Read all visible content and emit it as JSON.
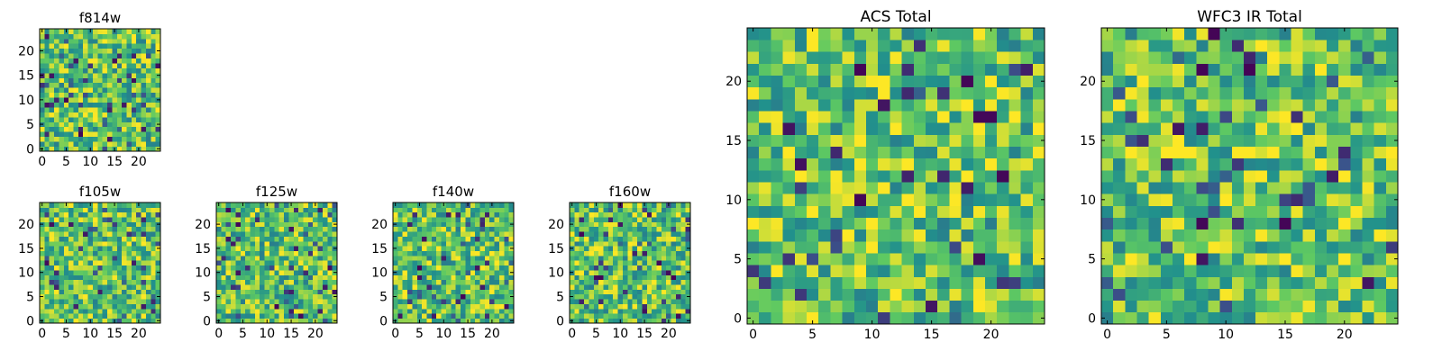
{
  "figure": {
    "description_label": "Image cutout panels"
  },
  "chart_data": [
    {
      "type": "heatmap",
      "title": "f814w",
      "grid_size": 25,
      "xlim": [
        0,
        24
      ],
      "ylim": [
        0,
        24
      ],
      "xticks": [
        0,
        5,
        10,
        15,
        20
      ],
      "yticks": [
        0,
        5,
        10,
        15,
        20
      ],
      "seed": 814,
      "colormap": "viridis"
    },
    {
      "type": "heatmap",
      "title": "f105w",
      "grid_size": 25,
      "xlim": [
        0,
        24
      ],
      "ylim": [
        0,
        24
      ],
      "xticks": [
        0,
        5,
        10,
        15,
        20
      ],
      "yticks": [
        0,
        5,
        10,
        15,
        20
      ],
      "seed": 105,
      "colormap": "viridis"
    },
    {
      "type": "heatmap",
      "title": "f125w",
      "grid_size": 25,
      "xlim": [
        0,
        24
      ],
      "ylim": [
        0,
        24
      ],
      "xticks": [
        0,
        5,
        10,
        15,
        20
      ],
      "yticks": [
        0,
        5,
        10,
        15,
        20
      ],
      "seed": 125,
      "colormap": "viridis"
    },
    {
      "type": "heatmap",
      "title": "f140w",
      "grid_size": 25,
      "xlim": [
        0,
        24
      ],
      "ylim": [
        0,
        24
      ],
      "xticks": [
        0,
        5,
        10,
        15,
        20
      ],
      "yticks": [
        0,
        5,
        10,
        15,
        20
      ],
      "seed": 140,
      "colormap": "viridis"
    },
    {
      "type": "heatmap",
      "title": "f160w",
      "grid_size": 25,
      "xlim": [
        0,
        24
      ],
      "ylim": [
        0,
        24
      ],
      "xticks": [
        0,
        5,
        10,
        15,
        20
      ],
      "yticks": [
        0,
        5,
        10,
        15,
        20
      ],
      "seed": 160,
      "colormap": "viridis"
    },
    {
      "type": "heatmap",
      "title": "ACS Total",
      "grid_size": 25,
      "xlim": [
        0,
        24
      ],
      "ylim": [
        0,
        24
      ],
      "xticks": [
        0,
        5,
        10,
        15,
        20
      ],
      "yticks": [
        0,
        5,
        10,
        15,
        20
      ],
      "seed": 1001,
      "colormap": "viridis"
    },
    {
      "type": "heatmap",
      "title": "WFC3 IR Total",
      "grid_size": 25,
      "xlim": [
        0,
        24
      ],
      "ylim": [
        0,
        24
      ],
      "xticks": [
        0,
        5,
        10,
        15,
        20
      ],
      "yticks": [
        0,
        5,
        10,
        15,
        20
      ],
      "seed": 2002,
      "colormap": "viridis"
    }
  ],
  "colors": {
    "background": "#ffffff",
    "axis": "#000000",
    "colormap_stops": [
      "#440154",
      "#3b528b",
      "#21918c",
      "#5ec962",
      "#fde725"
    ]
  }
}
